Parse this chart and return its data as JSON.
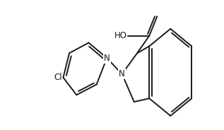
{
  "bg_color": "#ffffff",
  "line_color": "#1a1a1a",
  "line_width": 1.4,
  "font_size": 8.5,
  "xlim": [
    2.5,
    11.5
  ],
  "ylim": [
    0.5,
    6.5
  ]
}
